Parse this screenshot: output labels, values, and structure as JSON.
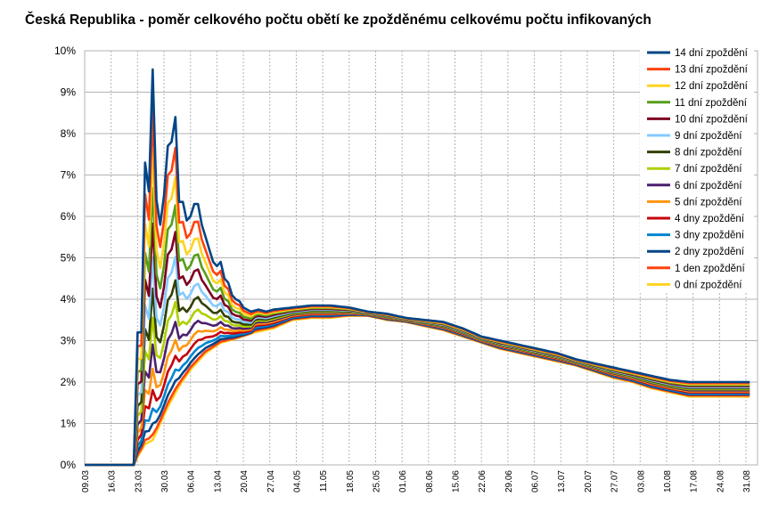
{
  "chart_data": {
    "type": "line",
    "title": "Česká Republika - poměr celkového počtu obětí ke zpožděnému celkovému počtu infikovaných",
    "xlabel": "",
    "ylabel": "",
    "x_tick_labels": [
      "09.03",
      "16.03",
      "23.03",
      "30.03",
      "06.04",
      "13.04",
      "20.04",
      "27.04",
      "04.05",
      "11.05",
      "18.05",
      "25.05",
      "01.06",
      "08.06",
      "15.06",
      "22.06",
      "29.06",
      "06.07",
      "13.07",
      "20.07",
      "27.07",
      "03.08",
      "10.08",
      "17.08",
      "24.08",
      "31.08"
    ],
    "y_tick_labels": [
      "0%",
      "1%",
      "2%",
      "3%",
      "4%",
      "5%",
      "6%",
      "7%",
      "8%",
      "9%",
      "10%"
    ],
    "ylim": [
      0,
      10
    ],
    "grid": true,
    "legend_position": "right",
    "series": [
      {
        "name": "14 dní zpoždění",
        "color": "#004586"
      },
      {
        "name": "13 dní zpoždění",
        "color": "#ff420e"
      },
      {
        "name": "12 dní zpoždění",
        "color": "#ffd320"
      },
      {
        "name": "11 dní zpoždění",
        "color": "#579d1c"
      },
      {
        "name": "10 dní zpoždění",
        "color": "#7e0021"
      },
      {
        "name": "9 dní zpoždění",
        "color": "#83caff"
      },
      {
        "name": "8 dní zpoždění",
        "color": "#314004"
      },
      {
        "name": "7 dní zpoždění",
        "color": "#aecf00"
      },
      {
        "name": "6 dní zpoždění",
        "color": "#4b1f6f"
      },
      {
        "name": "5 dní zpoždění",
        "color": "#ff950e"
      },
      {
        "name": "4 dny zpoždění",
        "color": "#c5000b"
      },
      {
        "name": "3 dny zpoždění",
        "color": "#0084d1"
      },
      {
        "name": "2 dny zpoždění",
        "color": "#004586"
      },
      {
        "name": "1 den zpoždění",
        "color": "#ff420e"
      },
      {
        "name": "0 dní zpoždění",
        "color": "#ffd320"
      }
    ],
    "curve_points_description": "values in percent by day index (0 = 09.03, 1 day per step)",
    "base_curve": [
      [
        0,
        0
      ],
      [
        13,
        0
      ],
      [
        14,
        0.2
      ],
      [
        16,
        0.5
      ],
      [
        18,
        0.6
      ],
      [
        20,
        1.0
      ],
      [
        22,
        1.4
      ],
      [
        25,
        1.9
      ],
      [
        28,
        2.3
      ],
      [
        32,
        2.7
      ],
      [
        36,
        2.95
      ],
      [
        40,
        3.05
      ],
      [
        45,
        3.2
      ],
      [
        50,
        3.3
      ],
      [
        55,
        3.5
      ],
      [
        60,
        3.55
      ],
      [
        65,
        3.55
      ],
      [
        70,
        3.6
      ],
      [
        75,
        3.6
      ],
      [
        80,
        3.5
      ],
      [
        85,
        3.45
      ],
      [
        90,
        3.35
      ],
      [
        95,
        3.25
      ],
      [
        100,
        3.1
      ],
      [
        105,
        2.95
      ],
      [
        110,
        2.8
      ],
      [
        115,
        2.7
      ],
      [
        120,
        2.6
      ],
      [
        125,
        2.5
      ],
      [
        130,
        2.4
      ],
      [
        135,
        2.25
      ],
      [
        140,
        2.1
      ],
      [
        145,
        2.0
      ],
      [
        150,
        1.85
      ],
      [
        155,
        1.75
      ],
      [
        160,
        1.65
      ]
    ],
    "peak_curve_14": [
      [
        13,
        0.0
      ],
      [
        14,
        3.2
      ],
      [
        15,
        3.2
      ],
      [
        16,
        7.3
      ],
      [
        17,
        6.6
      ],
      [
        18,
        9.55
      ],
      [
        19,
        6.4
      ],
      [
        20,
        5.8
      ],
      [
        21,
        6.5
      ],
      [
        22,
        7.7
      ],
      [
        23,
        7.8
      ],
      [
        24,
        8.4
      ],
      [
        25,
        6.35
      ],
      [
        26,
        6.35
      ],
      [
        27,
        5.9
      ],
      [
        28,
        6.0
      ],
      [
        29,
        6.3
      ],
      [
        30,
        6.3
      ],
      [
        31,
        5.8
      ],
      [
        32,
        5.5
      ],
      [
        33,
        5.2
      ],
      [
        34,
        4.9
      ],
      [
        35,
        4.8
      ],
      [
        36,
        4.9
      ],
      [
        37,
        4.5
      ],
      [
        38,
        4.4
      ],
      [
        39,
        4.1
      ],
      [
        40,
        4.0
      ],
      [
        41,
        3.95
      ],
      [
        42,
        3.8
      ],
      [
        44,
        3.7
      ],
      [
        46,
        3.75
      ],
      [
        48,
        3.7
      ],
      [
        50,
        3.75
      ],
      [
        55,
        3.8
      ],
      [
        60,
        3.85
      ],
      [
        65,
        3.85
      ],
      [
        70,
        3.8
      ],
      [
        75,
        3.7
      ],
      [
        80,
        3.65
      ],
      [
        85,
        3.55
      ],
      [
        90,
        3.5
      ],
      [
        95,
        3.45
      ],
      [
        100,
        3.3
      ],
      [
        105,
        3.1
      ],
      [
        110,
        3.0
      ],
      [
        115,
        2.9
      ],
      [
        120,
        2.8
      ],
      [
        125,
        2.7
      ],
      [
        130,
        2.55
      ],
      [
        135,
        2.45
      ],
      [
        140,
        2.35
      ],
      [
        145,
        2.25
      ],
      [
        150,
        2.15
      ],
      [
        155,
        2.05
      ],
      [
        160,
        2.0
      ]
    ]
  }
}
